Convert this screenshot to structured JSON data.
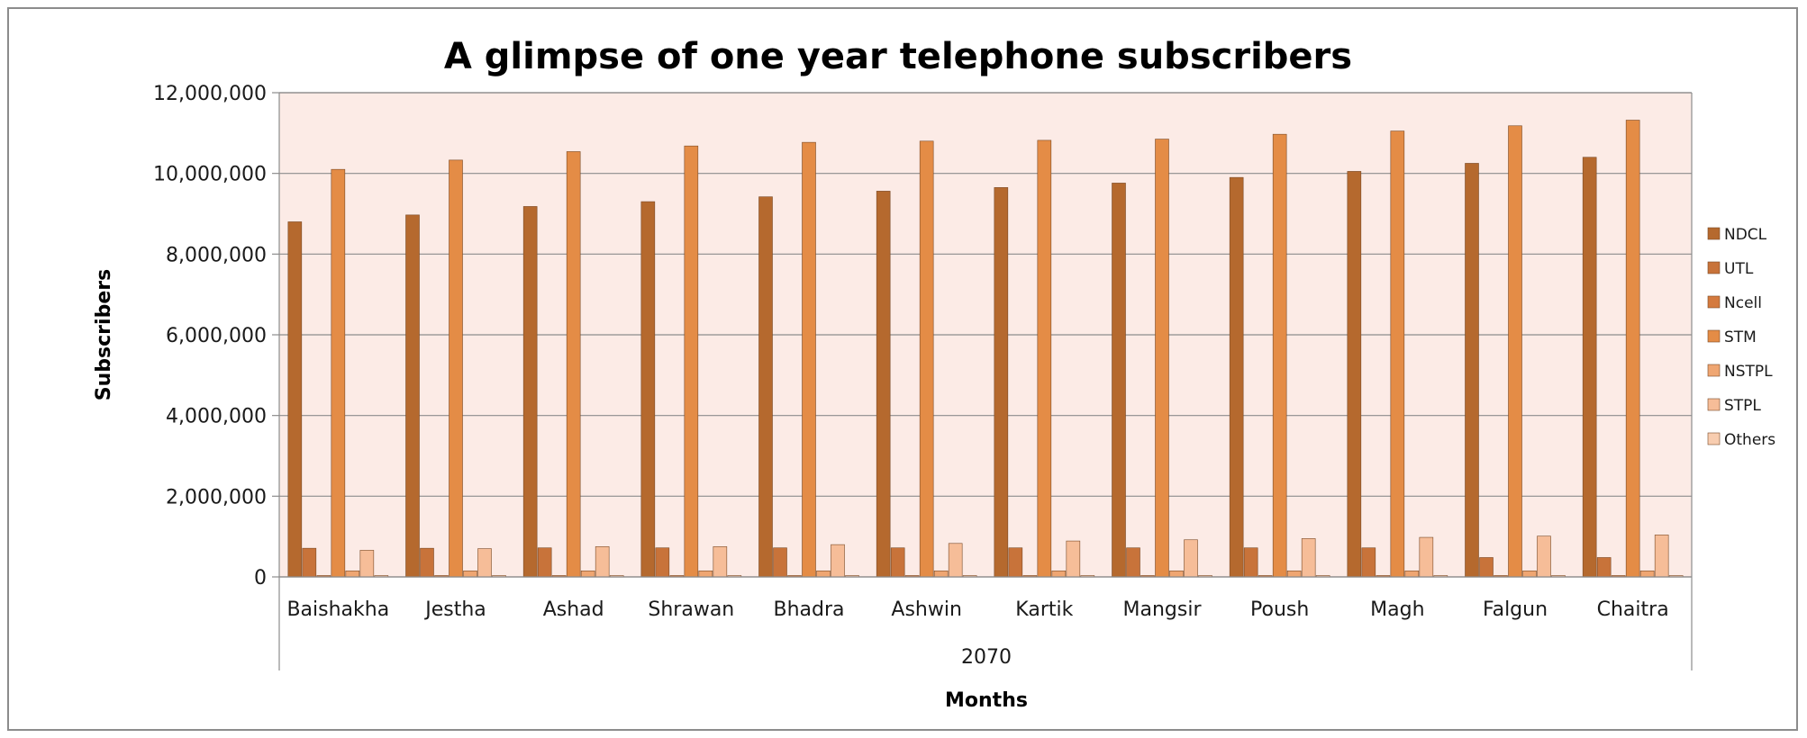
{
  "chart_data": {
    "type": "bar",
    "title": "A glimpse of one year telephone subscribers",
    "xlabel": "Months",
    "ylabel": "Subscribers",
    "group_label": "2070",
    "ylim": [
      0,
      12000000
    ],
    "yticks": [
      0,
      2000000,
      4000000,
      6000000,
      8000000,
      10000000,
      12000000
    ],
    "ytick_labels": [
      "0",
      "2,000,000",
      "4,000,000",
      "6,000,000",
      "8,000,000",
      "10,000,000",
      "12,000,000"
    ],
    "grid": true,
    "legend_position": "right",
    "categories": [
      "Baishakha",
      "Jestha",
      "Ashad",
      "Shrawan",
      "Bhadra",
      "Ashwin",
      "Kartik",
      "Mangsir",
      "Poush",
      "Magh",
      "Falgun",
      "Chaitra"
    ],
    "series": [
      {
        "name": "NDCL",
        "color": "#b5692e",
        "values": [
          8800000,
          8970000,
          9180000,
          9300000,
          9420000,
          9560000,
          9650000,
          9760000,
          9900000,
          10050000,
          10250000,
          10400000
        ]
      },
      {
        "name": "UTL",
        "color": "#c8733a",
        "values": [
          710000,
          710000,
          720000,
          720000,
          720000,
          720000,
          720000,
          720000,
          720000,
          720000,
          480000,
          480000
        ]
      },
      {
        "name": "Ncell",
        "color": "#d47a3e",
        "values": [
          30000,
          30000,
          30000,
          30000,
          30000,
          30000,
          30000,
          30000,
          30000,
          30000,
          30000,
          30000
        ]
      },
      {
        "name": "STM",
        "color": "#e48c46",
        "values": [
          10100000,
          10330000,
          10540000,
          10680000,
          10770000,
          10800000,
          10820000,
          10850000,
          10970000,
          11050000,
          11180000,
          11320000
        ]
      },
      {
        "name": "NSTPL",
        "color": "#efa672",
        "values": [
          150000,
          150000,
          150000,
          150000,
          150000,
          150000,
          150000,
          150000,
          150000,
          150000,
          150000,
          150000
        ]
      },
      {
        "name": "STPL",
        "color": "#f6bd98",
        "values": [
          660000,
          700000,
          750000,
          750000,
          800000,
          830000,
          890000,
          920000,
          950000,
          980000,
          1010000,
          1040000
        ]
      },
      {
        "name": "Others",
        "color": "#f8cdb0",
        "values": [
          20000,
          20000,
          20000,
          20000,
          20000,
          20000,
          20000,
          20000,
          20000,
          20000,
          20000,
          20000
        ]
      }
    ],
    "colors": {
      "plot_background": "#fcebe6",
      "gridline": "#8c8c8c",
      "frame": "#8c8c8c",
      "bar_outline": "#7a4a26"
    }
  }
}
